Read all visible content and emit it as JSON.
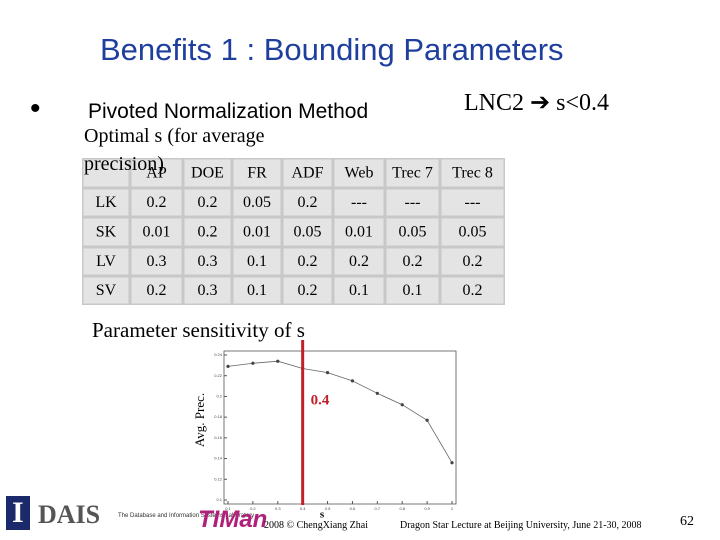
{
  "title": "Benefits 1 : Bounding Parameters",
  "bullet": "Pivoted Normalization Method",
  "note": "LNC2 ➔ s<0.4",
  "table_caption": "Optimal s (for average precision)",
  "table": {
    "header": [
      "AP",
      "DOE",
      "FR",
      "ADF",
      "Web",
      "Trec 7",
      "Trec 8"
    ],
    "rows": [
      [
        "LK",
        "0.2",
        "0.2",
        "0.05",
        "0.2",
        "---",
        "---",
        "---"
      ],
      [
        "SK",
        "0.01",
        "0.2",
        "0.01",
        "0.05",
        "0.01",
        "0.05",
        "0.05"
      ],
      [
        "LV",
        "0.3",
        "0.3",
        "0.1",
        "0.2",
        "0.2",
        "0.2",
        "0.2"
      ],
      [
        "SV",
        "0.2",
        "0.3",
        "0.1",
        "0.2",
        "0.1",
        "0.1",
        "0.2"
      ]
    ]
  },
  "plot_caption": "Parameter sensitivity of s",
  "plot": {
    "type": "line",
    "ylabel": "Avg. Prec.",
    "xlabel": "s",
    "marker_label": "0.4",
    "marker_x": 0.4,
    "x": [
      0.1,
      0.2,
      0.3,
      0.4,
      0.5,
      0.6,
      0.7,
      0.8,
      0.9,
      1
    ],
    "values": [
      0.229,
      0.232,
      0.234,
      0.227,
      0.223,
      0.215,
      0.203,
      0.192,
      0.177,
      0.136
    ],
    "xlim": [
      0.1,
      1
    ],
    "xticks": [
      0.1,
      0.2,
      0.3,
      0.4,
      0.5,
      0.6,
      0.7,
      0.8,
      0.9,
      1
    ],
    "ylim": [
      0.1,
      0.24
    ],
    "yticks": [
      0.1,
      0.12,
      0.14,
      0.16,
      0.18,
      0.2,
      0.22,
      0.24
    ]
  },
  "footer": {
    "lab": "DAIS",
    "lab_name": "The Database and Information Systems Laboratory",
    "group": "TIMan",
    "copyright": "2008 © ChengXiang Zhai",
    "lecture": "Dragon Star Lecture at Beijing University, June 21-30, 2008",
    "page": "62"
  }
}
